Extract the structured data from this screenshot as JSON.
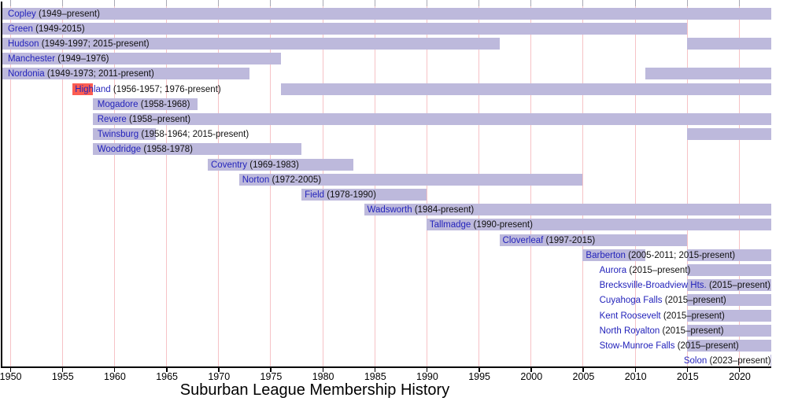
{
  "chart_data": {
    "type": "timeline",
    "title": "Suburban League Membership History",
    "axis": {
      "tick_years": [
        1950,
        1955,
        1960,
        1965,
        1970,
        1975,
        1980,
        1985,
        1990,
        1995,
        2000,
        2005,
        2010,
        2015,
        2020
      ],
      "start_year": 1949.2,
      "end_year": 2023.1,
      "present_year": 2023.1,
      "grid": true
    },
    "colors": {
      "bar": "#bdb9dc",
      "highlight": "#fc5d52",
      "gridline": "#f6c2c6",
      "link_blue": "#2323bb",
      "axis": "#000000"
    },
    "rows": [
      {
        "name": "Copley",
        "years_label": "(1949–present)",
        "label_anchor_year": 1949.8,
        "segments": [
          {
            "from": 1949,
            "to": "present",
            "color": "bar"
          }
        ]
      },
      {
        "name": "Green",
        "years_label": "(1949-2015)",
        "label_anchor_year": 1949.8,
        "segments": [
          {
            "from": 1949,
            "to": 2015,
            "color": "bar"
          }
        ]
      },
      {
        "name": "Hudson",
        "years_label": "(1949-1997; 2015-present)",
        "label_anchor_year": 1949.8,
        "segments": [
          {
            "from": 1949,
            "to": 1997,
            "color": "bar"
          },
          {
            "from": 2015,
            "to": "present",
            "color": "bar"
          }
        ]
      },
      {
        "name": "Manchester",
        "years_label": "(1949–1976)",
        "label_anchor_year": 1949.8,
        "segments": [
          {
            "from": 1949,
            "to": 1976,
            "color": "bar"
          }
        ]
      },
      {
        "name": "Nordonia",
        "years_label": "(1949-1973; 2011-present)",
        "label_anchor_year": 1949.8,
        "segments": [
          {
            "from": 1949,
            "to": 1973,
            "color": "bar"
          },
          {
            "from": 2011,
            "to": "present",
            "color": "bar"
          }
        ]
      },
      {
        "name": "Highland",
        "years_label": "(1956-1957; 1976-present)",
        "label_anchor_year": 1956.25,
        "segments": [
          {
            "from": 1956,
            "to": 1958,
            "color": "highlight"
          },
          {
            "from": 1976,
            "to": "present",
            "color": "bar"
          }
        ]
      },
      {
        "name": "Mogadore",
        "years_label": "(1958-1968)",
        "label_anchor_year": 1958.4,
        "segments": [
          {
            "from": 1958,
            "to": 1968,
            "color": "bar"
          }
        ]
      },
      {
        "name": "Revere",
        "years_label": "(1958–present)",
        "label_anchor_year": 1958.4,
        "segments": [
          {
            "from": 1958,
            "to": "present",
            "color": "bar"
          }
        ]
      },
      {
        "name": "Twinsburg",
        "years_label": "(1958-1964; 2015-present)",
        "label_anchor_year": 1958.4,
        "segments": [
          {
            "from": 1958,
            "to": 1964,
            "color": "bar"
          },
          {
            "from": 2015,
            "to": "present",
            "color": "bar"
          }
        ]
      },
      {
        "name": "Woodridge",
        "years_label": "(1958-1978)",
        "label_anchor_year": 1958.4,
        "segments": [
          {
            "from": 1958,
            "to": 1978,
            "color": "bar"
          }
        ]
      },
      {
        "name": "Coventry",
        "years_label": "(1969-1983)",
        "label_anchor_year": 1969.3,
        "segments": [
          {
            "from": 1969,
            "to": 1983,
            "color": "bar"
          }
        ]
      },
      {
        "name": "Norton",
        "years_label": "(1972-2005)",
        "label_anchor_year": 1972.3,
        "segments": [
          {
            "from": 1972,
            "to": 2005,
            "color": "bar"
          }
        ]
      },
      {
        "name": "Field",
        "years_label": "(1978-1990)",
        "label_anchor_year": 1978.3,
        "segments": [
          {
            "from": 1978,
            "to": 1990,
            "color": "bar"
          }
        ]
      },
      {
        "name": "Wadsworth",
        "years_label": "(1984-present)",
        "label_anchor_year": 1984.3,
        "segments": [
          {
            "from": 1984,
            "to": "present",
            "color": "bar"
          }
        ]
      },
      {
        "name": "Tallmadge",
        "years_label": "(1990-present)",
        "label_anchor_year": 1990.3,
        "segments": [
          {
            "from": 1990,
            "to": "present",
            "color": "bar"
          }
        ]
      },
      {
        "name": "Cloverleaf",
        "years_label": "(1997-2015)",
        "label_anchor_year": 1997.3,
        "segments": [
          {
            "from": 1997,
            "to": 2015,
            "color": "bar"
          }
        ]
      },
      {
        "name": "Barberton",
        "years_label": "(2005-2011; 2015-present)",
        "label_anchor_year": 2005.3,
        "segments": [
          {
            "from": 2005,
            "to": 2011,
            "color": "bar"
          },
          {
            "from": 2015,
            "to": "present",
            "color": "bar"
          }
        ]
      },
      {
        "name": "Aurora",
        "years_label": "(2015–present)",
        "label_anchor_year": 2006.6,
        "segments": [
          {
            "from": 2015,
            "to": "present",
            "color": "bar"
          }
        ]
      },
      {
        "name": "Brecksville-Broadview Hts.",
        "years_label": "(2015–present)",
        "label_anchor_year": 2006.6,
        "segments": [
          {
            "from": 2015,
            "to": "present",
            "color": "bar"
          }
        ]
      },
      {
        "name": "Cuyahoga Falls",
        "years_label": "(2015–present)",
        "label_anchor_year": 2006.6,
        "segments": [
          {
            "from": 2015,
            "to": "present",
            "color": "bar"
          }
        ]
      },
      {
        "name": "Kent Roosevelt",
        "years_label": "(2015–present)",
        "label_anchor_year": 2006.6,
        "segments": [
          {
            "from": 2015,
            "to": "present",
            "color": "bar"
          }
        ]
      },
      {
        "name": "North Royalton",
        "years_label": "(2015–present)",
        "label_anchor_year": 2006.6,
        "segments": [
          {
            "from": 2015,
            "to": "present",
            "color": "bar"
          }
        ]
      },
      {
        "name": "Stow-Munroe Falls",
        "years_label": "(2015–present)",
        "label_anchor_year": 2006.6,
        "segments": [
          {
            "from": 2015,
            "to": "present",
            "color": "bar"
          }
        ]
      },
      {
        "name": "Solon",
        "years_label": "(2023–present)",
        "label_anchor_year": 2014.7,
        "segments": [
          {
            "from": 2023,
            "to": "present",
            "color": "bar"
          }
        ]
      }
    ]
  }
}
